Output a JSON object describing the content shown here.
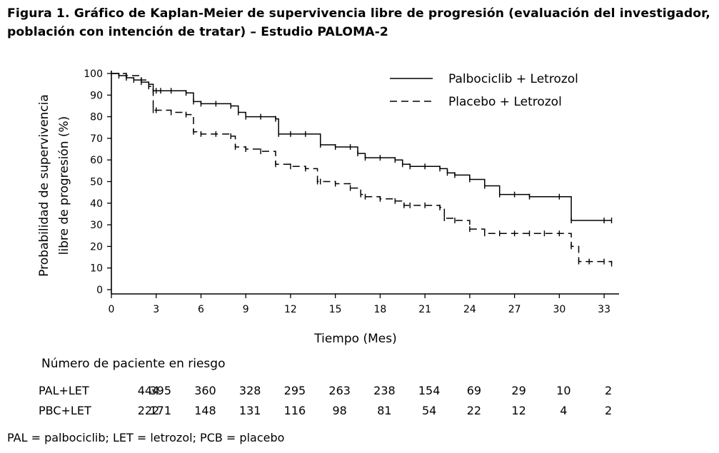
{
  "title": "Figura 1. Gráfico de Kaplan-Meier de supervivencia libre de progresión (evaluación del investigador, población con intención de tratar) – Estudio PALOMA-2",
  "chart_data": {
    "type": "line",
    "xlabel": "Tiempo (Mes)",
    "ylabel_line1": "Probabilidad de supervivencia",
    "ylabel_line2": "libre de progresión (%)",
    "xlim": [
      0,
      34
    ],
    "ylim": [
      0,
      100
    ],
    "xticks": [
      "0",
      "3",
      "6",
      "9",
      "12",
      "15",
      "18",
      "21",
      "24",
      "27",
      "30",
      "33"
    ],
    "yticks": [
      "0",
      "10",
      "20",
      "30",
      "40",
      "50",
      "60",
      "70",
      "80",
      "90",
      "100"
    ],
    "legend_position": "top-right",
    "series": [
      {
        "name": "Palbociclib + Letrozol",
        "style": "solid",
        "x": [
          0,
          0.5,
          1,
          1.5,
          2,
          2.5,
          2.8,
          3,
          3.3,
          4,
          5,
          5.5,
          6,
          7,
          8,
          8.5,
          9,
          10,
          11,
          11.2,
          12,
          13,
          14,
          15,
          16,
          16.5,
          17,
          18,
          19,
          19.5,
          20,
          21,
          22,
          22.5,
          23,
          24,
          25,
          26,
          27,
          28,
          30,
          30.8,
          33,
          33.5
        ],
        "y": [
          100,
          99,
          98,
          97,
          96,
          95,
          92,
          92,
          92,
          92,
          91,
          87,
          86,
          86,
          85,
          82,
          80,
          80,
          79,
          72,
          72,
          72,
          67,
          66,
          66,
          63,
          61,
          61,
          60,
          58,
          57,
          57,
          56,
          54,
          53,
          51,
          48,
          44,
          44,
          43,
          43,
          32,
          32,
          32
        ]
      },
      {
        "name": "Placebo + Letrozol",
        "style": "dashed",
        "x": [
          0,
          1,
          2,
          2.5,
          2.8,
          3,
          4,
          5,
          5.5,
          6,
          7,
          8,
          8.3,
          9,
          10,
          11,
          12,
          13,
          13.8,
          14,
          15,
          16,
          16.7,
          17,
          18,
          19,
          19.6,
          20,
          21,
          22,
          22.3,
          23,
          24,
          25,
          26,
          27,
          28,
          29,
          30,
          30.8,
          31.3,
          32,
          33,
          33.5
        ],
        "y": [
          100,
          99,
          97,
          94,
          83,
          83,
          82,
          81,
          73,
          72,
          72,
          71,
          66,
          65,
          64,
          58,
          57,
          56,
          50,
          50,
          49,
          47,
          44,
          43,
          42,
          41,
          39,
          39,
          39,
          38,
          33,
          32,
          28,
          26,
          26,
          26,
          26,
          26,
          26,
          20,
          13,
          13,
          13,
          12
        ]
      }
    ]
  },
  "risk": {
    "title": "Número de paciente en riesgo",
    "rows": [
      {
        "label": "PAL+LET",
        "values": [
          "444",
          "395",
          "360",
          "328",
          "295",
          "263",
          "238",
          "154",
          "69",
          "29",
          "10",
          "2"
        ]
      },
      {
        "label": "PBC+LET",
        "values": [
          "222",
          "171",
          "148",
          "131",
          "116",
          "98",
          "81",
          "54",
          "22",
          "12",
          "4",
          "2"
        ]
      }
    ]
  },
  "footnote": "PAL = palbociclib; LET = letrozol; PCB = placebo"
}
